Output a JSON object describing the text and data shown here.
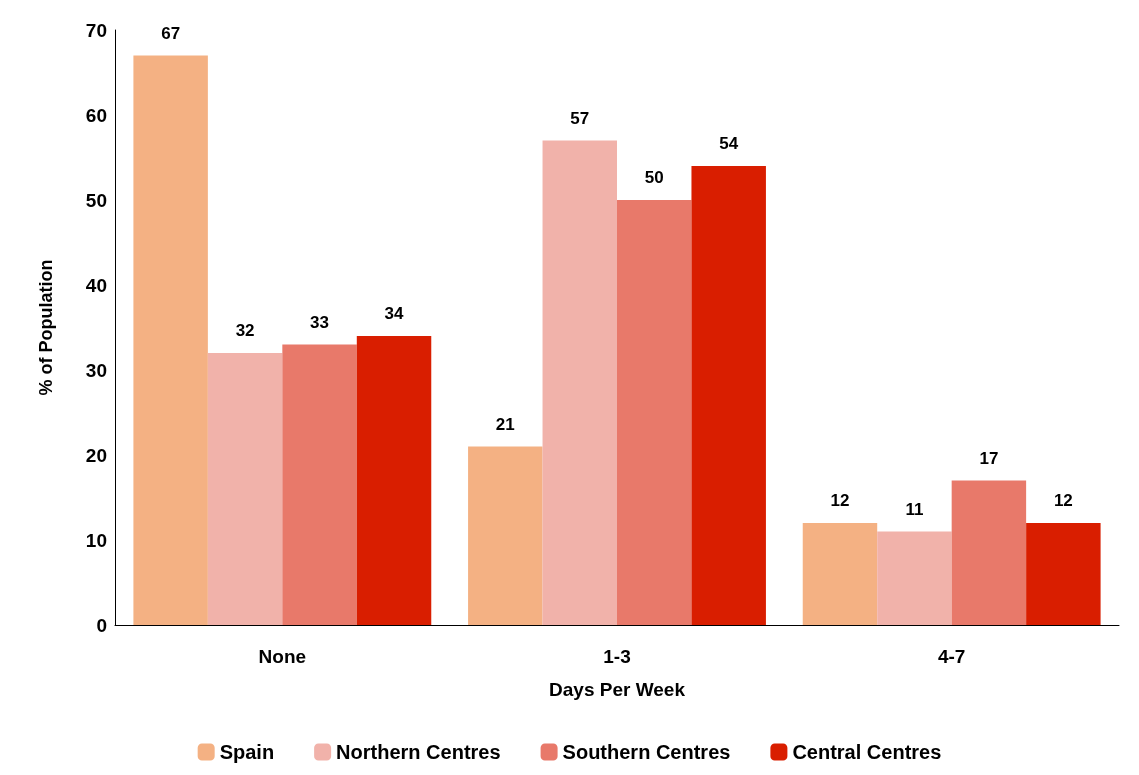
{
  "chart_data": {
    "type": "bar",
    "xlabel": "Days Per Week",
    "ylabel": "% of Population",
    "categories": [
      "None",
      "1-3",
      "4-7"
    ],
    "series": [
      {
        "name": "Spain",
        "color": "#f4b183",
        "values": [
          67,
          21,
          12
        ]
      },
      {
        "name": "Northern Centres",
        "color": "#f1b2aa",
        "values": [
          32,
          57,
          11
        ]
      },
      {
        "name": "Southern Centres",
        "color": "#e8796a",
        "values": [
          33,
          50,
          17
        ]
      },
      {
        "name": "Central Centres",
        "color": "#d91e00",
        "values": [
          34,
          54,
          12
        ]
      }
    ],
    "ylim": [
      0,
      70
    ],
    "yticks": [
      0,
      10,
      20,
      30,
      40,
      50,
      60,
      70
    ],
    "grid": false,
    "legend": "bottom",
    "data_labels": true
  }
}
